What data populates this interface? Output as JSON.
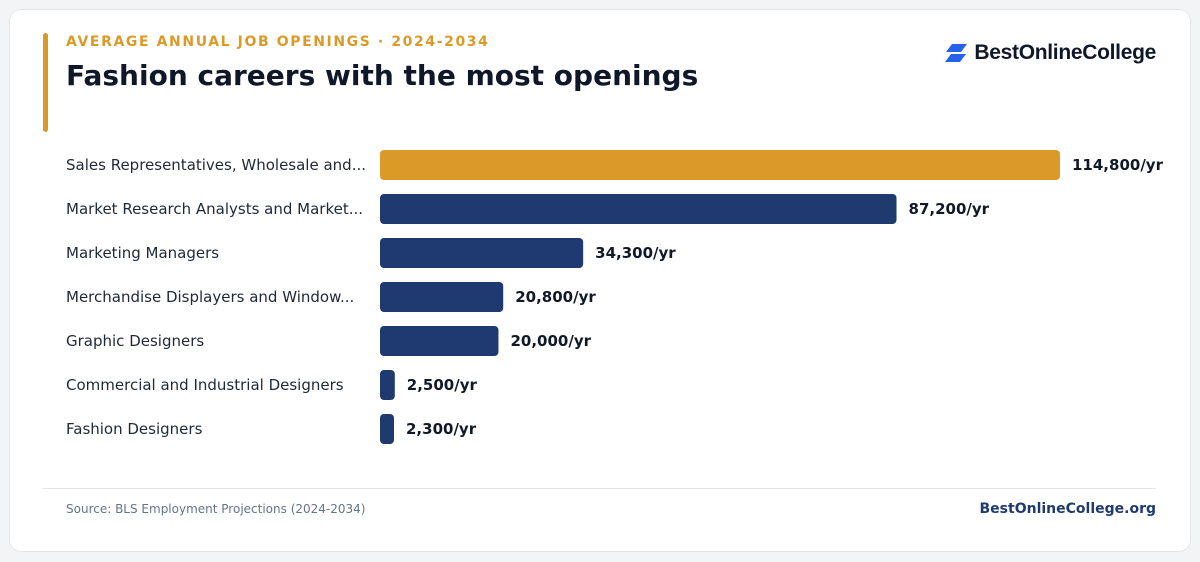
{
  "header": {
    "eyebrow": "AVERAGE ANNUAL JOB OPENINGS · 2024-2034",
    "title": "Fashion careers with the most openings"
  },
  "brand": {
    "name": "BestOnlineCollege",
    "icon": "brand-logo-icon"
  },
  "footer": {
    "source": "Source: BLS Employment Projections (2024-2034)",
    "site": "BestOnlineCollege.org"
  },
  "colors": {
    "accent": "#db9a28",
    "bar": "#1e3a6e",
    "brand_blue": "#2563eb"
  },
  "chart_data": {
    "type": "bar",
    "orientation": "horizontal",
    "categories": [
      "Sales Representatives, Wholesale and...",
      "Market Research Analysts and Market...",
      "Marketing Managers",
      "Merchandise Displayers and Window...",
      "Graphic Designers",
      "Commercial and Industrial Designers",
      "Fashion Designers"
    ],
    "values": [
      114800,
      87200,
      34300,
      20800,
      20000,
      2500,
      2300
    ],
    "value_labels": [
      "114,800/yr",
      "87,200/yr",
      "34,300/yr",
      "20,800/yr",
      "20,000/yr",
      "2,500/yr",
      "2,300/yr"
    ],
    "highlight_index": 0,
    "xlim": [
      0,
      114800
    ],
    "grid": false,
    "legend": "none"
  }
}
